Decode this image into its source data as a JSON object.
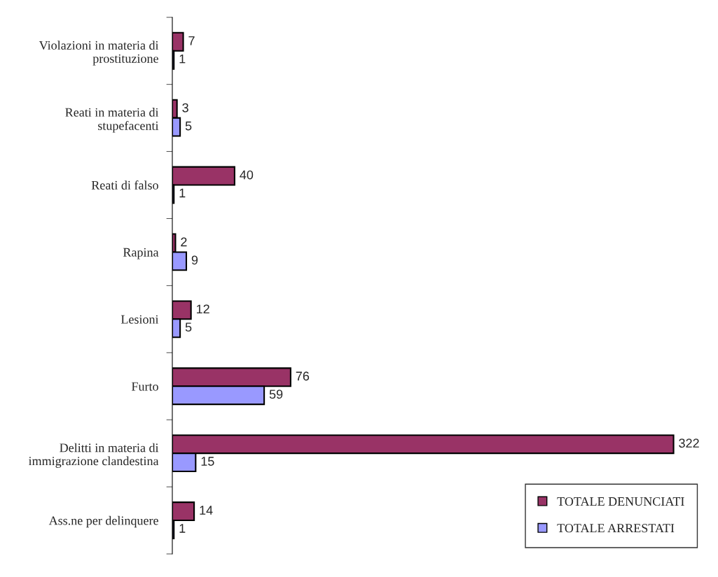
{
  "chart_data": {
    "type": "bar",
    "orientation": "horizontal",
    "categories": [
      "Violazioni in materia di\nprostituzione",
      "Reati in materia di\nstupefacenti",
      "Reati di falso",
      "Rapina",
      "Lesioni",
      "Furto",
      "Delitti in materia di\nimmigrazione clandestina",
      "Ass.ne per delinquere"
    ],
    "series": [
      {
        "name": "TOTALE DENUNCIATI",
        "color": "#993366",
        "values": [
          7,
          3,
          40,
          2,
          12,
          76,
          322,
          14
        ]
      },
      {
        "name": "TOTALE ARRESTATI",
        "color": "#9999ff",
        "values": [
          1,
          5,
          1,
          9,
          5,
          59,
          15,
          1
        ]
      }
    ],
    "data_labels": true,
    "legend": "bottom right",
    "grid": false
  }
}
